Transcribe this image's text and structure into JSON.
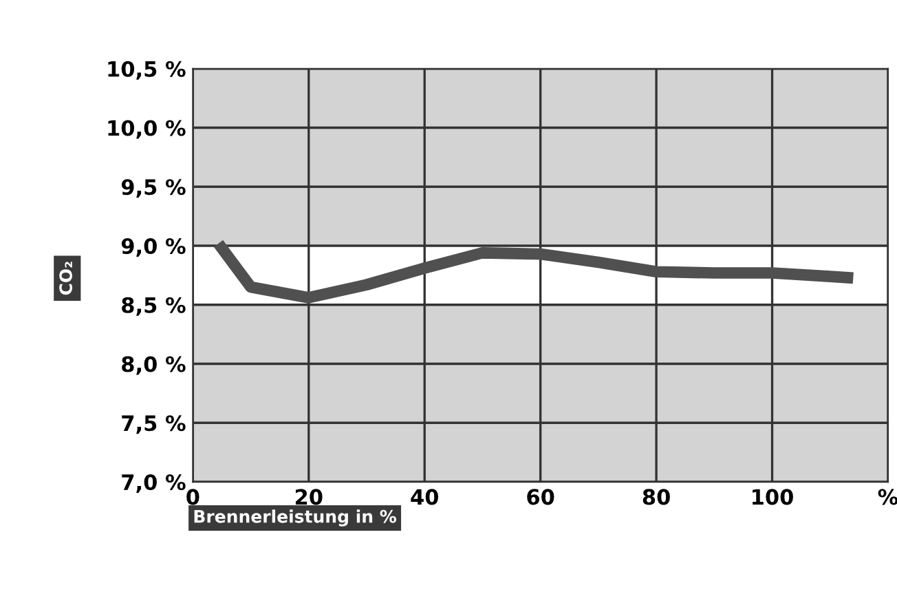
{
  "chart_data": {
    "type": "line",
    "xlabel": "Brennerleistung in %",
    "ylabel": "CO₂",
    "x": [
      5,
      10,
      20,
      30,
      40,
      50,
      60,
      70,
      80,
      90,
      100,
      110,
      113
    ],
    "series": [
      {
        "color": "#505050",
        "values": [
          8.98,
          8.65,
          8.56,
          8.67,
          8.81,
          8.94,
          8.93,
          8.86,
          8.78,
          8.77,
          8.77,
          8.74,
          8.73
        ]
      }
    ],
    "xlim": [
      0,
      120
    ],
    "xticks": [
      0,
      20,
      40,
      60,
      80,
      100,
      {
        "value": 120,
        "label": "%"
      }
    ],
    "ylim": [
      7.0,
      10.5
    ],
    "yticks": [
      {
        "value": 7.0,
        "label": "7,0 %"
      },
      {
        "value": 7.5,
        "label": "7,5 %"
      },
      {
        "value": 8.0,
        "label": "8,0 %"
      },
      {
        "value": 8.5,
        "label": "8,5 %"
      },
      {
        "value": 9.0,
        "label": "9,0 %"
      },
      {
        "value": 9.5,
        "label": "9,5 %"
      },
      {
        "value": 10.0,
        "label": "10,0 %"
      },
      {
        "value": 10.5,
        "label": "10,5 %"
      }
    ],
    "bands": [
      {
        "axis": "y",
        "from": 8.5,
        "to": 9.0,
        "color": "#ffffff"
      }
    ],
    "grid": true,
    "marker": "none",
    "line_style": "solid"
  }
}
